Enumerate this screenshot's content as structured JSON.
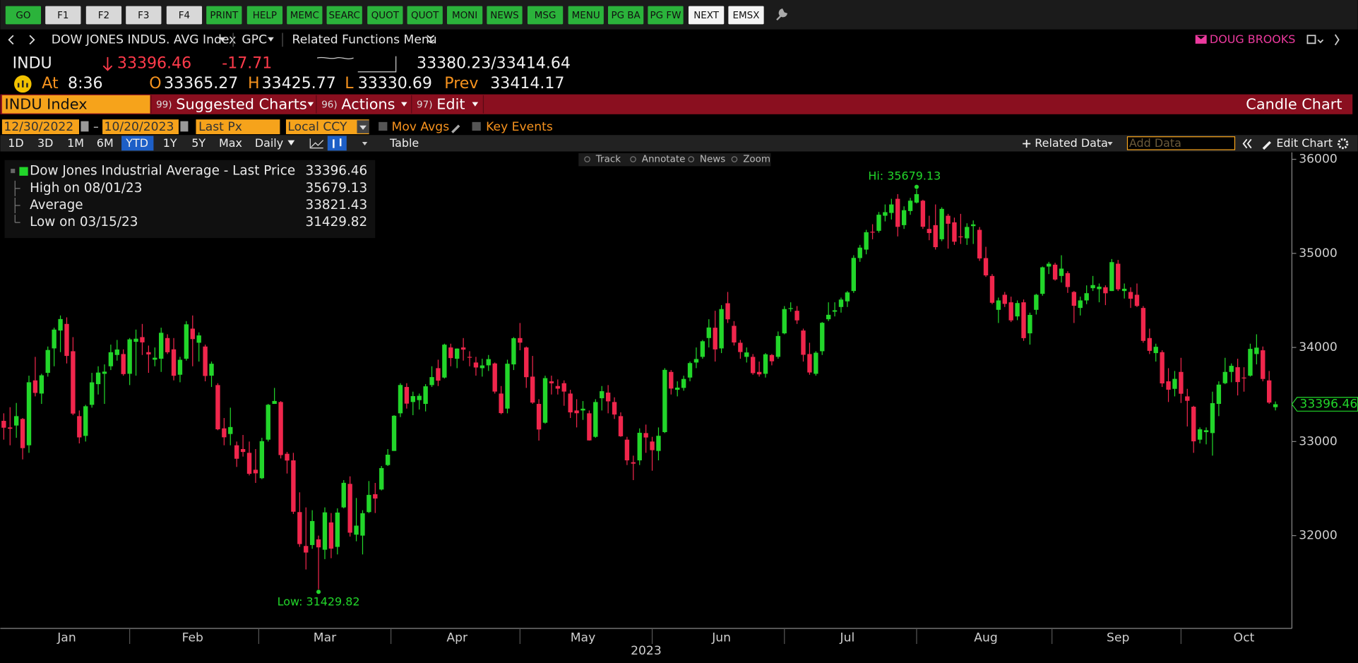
{
  "ui": {
    "toolbar": [
      "GO",
      "F1",
      "F2",
      "F3",
      "F4",
      "PRINT",
      "HELP",
      "MEMC",
      "SEARC",
      "QUOT",
      "QUOT",
      "MONI",
      "NEWS",
      "MSG",
      "MENU",
      "PG BA",
      "PG FW",
      "NEXT",
      "EMSX"
    ],
    "nav": {
      "security": "DOW JONES INDUS. AVG Index",
      "gpc": "GPC",
      "related": "Related Functions Menu",
      "user": "DOUG BROOKS"
    },
    "quote": {
      "ticker": "INDU",
      "last": "33396.46",
      "change": "-17.71",
      "bid_ask": "33380.23/33414.64",
      "at_label": "At",
      "time": "8:36",
      "open_label": "O",
      "open": "33365.27",
      "high_label": "H",
      "high": "33425.77",
      "low_label": "L",
      "low": "33330.69",
      "prev_label": "Prev",
      "prev": "33414.17"
    },
    "bar": {
      "ticker": "INDU Index",
      "menu1_num": "99)",
      "menu1": "Suggested Charts",
      "menu2_num": "96)",
      "menu2": "Actions",
      "menu3_num": "97)",
      "menu3": "Edit",
      "chart_kind": "Candle Chart"
    },
    "settings": {
      "start": "12/30/2022",
      "end": "10/20/2023",
      "price": "Last Px",
      "currency": "Local CCY",
      "mov_avgs": "Mov Avgs",
      "key_events": "Key Events"
    },
    "ranges": [
      "1D",
      "3D",
      "1M",
      "6M",
      "YTD",
      "1Y",
      "5Y",
      "Max"
    ],
    "period": "Daily",
    "table": "Table",
    "related_data": "Related Data",
    "add_data": "Add Data",
    "edit_chart": "Edit Chart",
    "chart_tools": [
      "Track",
      "Annotate",
      "News",
      "Zoom"
    ]
  },
  "chart_data": {
    "type": "candlestick",
    "legend": [
      {
        "label": "Dow Jones Industrial Average - Last Price",
        "value": "33396.46"
      },
      {
        "label": "High on 08/01/23",
        "value": "35679.13"
      },
      {
        "label": "Average",
        "value": "33821.43"
      },
      {
        "label": "Low on 03/15/23",
        "value": "31429.82"
      }
    ],
    "annotations": [
      "Hi: 35679.13",
      "Low: 31429.82"
    ],
    "last_price_label": "33396.46",
    "x_label": "2023",
    "up_color": "#22d62a",
    "down_color": "#f0264c",
    "ylim": [
      31014,
      36074
    ],
    "yticks": [
      32000,
      33000,
      34000,
      35000,
      36000
    ],
    "categories": [
      null,
      null,
      null,
      null,
      null,
      null,
      null,
      null,
      null,
      null,
      "Jan",
      null,
      null,
      null,
      null,
      null,
      null,
      null,
      null,
      null,
      null,
      null,
      null,
      null,
      null,
      null,
      null,
      null,
      null,
      null,
      "Feb",
      null,
      null,
      null,
      null,
      null,
      null,
      null,
      null,
      null,
      null,
      null,
      null,
      null,
      null,
      null,
      null,
      null,
      null,
      null,
      null,
      "Mar",
      null,
      null,
      null,
      null,
      null,
      null,
      null,
      null,
      null,
      null,
      null,
      null,
      null,
      null,
      null,
      null,
      null,
      null,
      null,
      null,
      "Apr",
      null,
      null,
      null,
      null,
      null,
      null,
      null,
      null,
      null,
      null,
      null,
      null,
      null,
      null,
      null,
      null,
      null,
      null,
      null,
      "May",
      null,
      null,
      null,
      null,
      null,
      null,
      null,
      null,
      null,
      null,
      null,
      null,
      null,
      null,
      null,
      null,
      null,
      null,
      null,
      null,
      null,
      "Jun",
      null,
      null,
      null,
      null,
      null,
      null,
      null,
      null,
      null,
      null,
      null,
      null,
      null,
      null,
      null,
      null,
      null,
      null,
      null,
      "Jul",
      null,
      null,
      null,
      null,
      null,
      null,
      null,
      null,
      null,
      null,
      null,
      null,
      null,
      null,
      null,
      null,
      null,
      null,
      null,
      null,
      null,
      "Aug",
      null,
      null,
      null,
      null,
      null,
      null,
      null,
      null,
      null,
      null,
      null,
      null,
      null,
      null,
      null,
      null,
      null,
      null,
      null,
      null,
      "Sep",
      null,
      null,
      null,
      null,
      null,
      null,
      null,
      null,
      null,
      null,
      null,
      null,
      null,
      null,
      null,
      null,
      null,
      null,
      null,
      "Oct",
      null,
      null,
      null,
      null,
      null
    ],
    "open": [
      33220,
      33150,
      33170,
      33240,
      32960,
      33650,
      33510,
      33730,
      33990,
      34180,
      34250,
      33960,
      33270,
      33060,
      33390,
      33610,
      33720,
      33800,
      33920,
      33930,
      33720,
      34060,
      34110,
      33950,
      33870,
      33880,
      34100,
      33980,
      33710,
      33880,
      34200,
      34050,
      34010,
      33700,
      33600,
      33140,
      33080,
      32960,
      32920,
      32880,
      32700,
      32610,
      33020,
      33400,
      33420,
      32870,
      32800,
      32250,
      31890,
      31900,
      31960,
      31850,
      32140,
      31880,
      32300,
      32550,
      32010,
      32000,
      32250,
      32440,
      32490,
      32750,
      32900,
      33300,
      33580,
      33420,
      33440,
      33400,
      33600,
      33780,
      33680,
      34000,
      33880,
      34000,
      33900,
      33840,
      33780,
      33810,
      33830,
      33510,
      33350,
      33820,
      34100,
      34000,
      33690,
      33400,
      33200,
      33640,
      33590,
      33620,
      33510,
      33330,
      33330,
      33300,
      33050,
      33460,
      33520,
      33420,
      33270,
      33020,
      32780,
      32800,
      33090,
      33000,
      32900,
      33100,
      33740,
      33550,
      33570,
      33680,
      33840,
      33900,
      34100,
      34210,
      33990,
      34470,
      34230,
      34050,
      33900,
      33900,
      33740,
      33720,
      33920,
      33900,
      34150,
      34410,
      34390,
      34180,
      33930,
      33720,
      33960,
      34300,
      34380,
      34430,
      34490,
      34600,
      34950,
      35040,
      35230,
      35240,
      35400,
      35430,
      35580,
      35300,
      35450,
      35540,
      35560,
      35260,
      35300,
      35150,
      35400,
      35330,
      35180,
      35160,
      35290,
      35250,
      34950,
      34760,
      34400,
      34560,
      34480,
      34330,
      34480,
      34150,
      34400,
      34570,
      34860,
      34880,
      34760,
      34790,
      34590,
      34420,
      34500,
      34630,
      34620,
      34640,
      34600,
      34890,
      34600,
      34590,
      34560,
      34420,
      34100,
      33940,
      33950,
      33640,
      33560,
      33740,
      33480,
      33370,
      33020,
      33100,
      33090,
      33400,
      33620,
      33740,
      33790,
      33680,
      33700,
      33930,
      33970,
      33650,
      33365.27
    ],
    "high": [
      33300,
      33365,
      33410,
      33250,
      33700,
      33900,
      33720,
      34010,
      34210,
      34340,
      34320,
      34110,
      33330,
      33390,
      33730,
      33800,
      33820,
      34030,
      34080,
      33980,
      34100,
      34190,
      34250,
      34020,
      34000,
      34210,
      34140,
      34100,
      33900,
      34280,
      34340,
      34160,
      34030,
      33850,
      33620,
      33250,
      33360,
      33000,
      33070,
      33000,
      32920,
      33040,
      33400,
      33570,
      33430,
      32890,
      32880,
      32460,
      32300,
      32270,
      32000,
      32300,
      32240,
      32290,
      32590,
      32630,
      32400,
      32270,
      32580,
      32560,
      32740,
      32920,
      33280,
      33620,
      33620,
      33530,
      33510,
      33610,
      33800,
      33870,
      34040,
      34040,
      33990,
      34100,
      33960,
      33900,
      33880,
      33920,
      33840,
      33590,
      33870,
      34110,
      34260,
      34010,
      33910,
      33450,
      33700,
      33700,
      33660,
      33650,
      33550,
      33450,
      33430,
      33330,
      33450,
      33590,
      33600,
      33470,
      33310,
      33050,
      32850,
      33140,
      33180,
      33050,
      33150,
      33780,
      33760,
      33640,
      33700,
      33850,
      34000,
      34080,
      34300,
      34390,
      34450,
      34590,
      34280,
      34080,
      34000,
      33930,
      33850,
      33940,
      33930,
      34170,
      34440,
      34480,
      34440,
      34200,
      34050,
      33960,
      34270,
      34480,
      34480,
      34530,
      34600,
      34980,
      35090,
      35250,
      35310,
      35440,
      35520,
      35580,
      35630,
      35500,
      35590,
      35679.13,
      35570,
      35400,
      35520,
      35490,
      35420,
      35380,
      35420,
      35320,
      35350,
      35280,
      35070,
      34780,
      34530,
      34590,
      34540,
      34500,
      34510,
      34370,
      34570,
      34860,
      34910,
      34900,
      34980,
      34810,
      34600,
      34540,
      34660,
      34760,
      34680,
      34660,
      34940,
      34930,
      34680,
      34640,
      34680,
      34440,
      34200,
      34040,
      33970,
      33780,
      33750,
      33890,
      33560,
      33380,
      33150,
      33150,
      33530,
      33640,
      33890,
      33830,
      33880,
      33790,
      34040,
      34140,
      34010,
      33750,
      33425.77
    ],
    "low": [
      33020,
      32960,
      33040,
      32810,
      32880,
      33480,
      33400,
      33690,
      33800,
      33950,
      33830,
      33280,
      32980,
      33000,
      33360,
      33500,
      33400,
      33760,
      33860,
      33700,
      33600,
      33700,
      33920,
      33730,
      33800,
      33740,
      33930,
      33650,
      33630,
      33860,
      33800,
      33850,
      33640,
      33580,
      33120,
      32960,
      32960,
      32730,
      32840,
      32640,
      32560,
      32600,
      33000,
      33400,
      32820,
      32660,
      32230,
      31880,
      31640,
      31860,
      31429.82,
      31750,
      31760,
      31800,
      32290,
      31990,
      31940,
      31800,
      32240,
      32240,
      32480,
      32740,
      32900,
      33260,
      33350,
      33280,
      33340,
      33320,
      33580,
      33590,
      33670,
      33800,
      33780,
      33860,
      33800,
      33700,
      33690,
      33750,
      33510,
      33290,
      33300,
      33760,
      33970,
      33570,
      33400,
      33010,
      33190,
      33500,
      33500,
      33380,
      33250,
      33150,
      33230,
      33010,
      33040,
      33330,
      33300,
      33240,
      33050,
      32750,
      32590,
      32750,
      32880,
      32690,
      32800,
      33090,
      33500,
      33480,
      33540,
      33640,
      33780,
      33880,
      34000,
      33850,
      33940,
      34260,
      34020,
      33880,
      33840,
      33710,
      33690,
      33680,
      33810,
      33880,
      34140,
      34380,
      34250,
      33850,
      33710,
      33700,
      33920,
      34280,
      34330,
      34370,
      34430,
      34580,
      34910,
      34990,
      35150,
      35220,
      35340,
      35360,
      35180,
      35260,
      35410,
      35530,
      35260,
      35140,
      35040,
      35130,
      35050,
      35090,
      35100,
      35090,
      35100,
      34920,
      34750,
      34460,
      34260,
      34430,
      34270,
      34290,
      34070,
      34030,
      34350,
      34550,
      34780,
      34710,
      34690,
      34580,
      34260,
      34340,
      34460,
      34600,
      34480,
      34450,
      34600,
      34600,
      34520,
      34420,
      34430,
      34050,
      33930,
      33850,
      33580,
      33420,
      33480,
      33410,
      33160,
      32880,
      32980,
      32970,
      32850,
      33270,
      33610,
      33630,
      33490,
      33530,
      33690,
      33820,
      33640,
      33400,
      33330.69
    ],
    "close": [
      33147,
      33136,
      33270,
      32930,
      33630,
      33517,
      33704,
      33973,
      34190,
      34302,
      33910,
      33297,
      33044,
      33375,
      33629,
      33733,
      33743,
      33949,
      33978,
      33717,
      34086,
      34093,
      34054,
      33926,
      33891,
      34156,
      33949,
      33699,
      33869,
      34246,
      34089,
      34128,
      33697,
      33827,
      33130,
      33045,
      33154,
      32817,
      32889,
      32657,
      32662,
      33004,
      33391,
      33431,
      32856,
      32798,
      32254,
      31910,
      31820,
      32155,
      31875,
      32247,
      31862,
      32245,
      32561,
      32031,
      32106,
      32238,
      32433,
      32394,
      32718,
      32860,
      33274,
      33601,
      33403,
      33483,
      33486,
      33587,
      33685,
      33647,
      34030,
      33887,
      33988,
      33977,
      33897,
      33787,
      33809,
      33876,
      33531,
      33302,
      33827,
      34098,
      34051,
      33684,
      33414,
      33128,
      33674,
      33619,
      33562,
      33531,
      33310,
      33301,
      33349,
      33012,
      33420,
      33535,
      33427,
      33287,
      33056,
      32800,
      32765,
      33093,
      33043,
      32908,
      33061,
      33762,
      33563,
      33573,
      33665,
      33834,
      33877,
      34066,
      34212,
      33979,
      34408,
      34299,
      34053,
      33951,
      33947,
      33727,
      33714,
      33927,
      33853,
      34122,
      34408,
      34418,
      34288,
      33922,
      33734,
      33944,
      34262,
      34347,
      34395,
      34509,
      34585,
      34952,
      35061,
      35225,
      35228,
      35411,
      35438,
      35520,
      35282,
      35459,
      35560,
      35630,
      35283,
      35216,
      35066,
      35473,
      35315,
      35124,
      35176,
      35281,
      35308,
      34946,
      34766,
      34475,
      34500,
      34463,
      34288,
      34472,
      34099,
      34346,
      34560,
      34852,
      34890,
      34722,
      34838,
      34642,
      34443,
      34500,
      34577,
      34663,
      34646,
      34576,
      34907,
      34618,
      34624,
      34518,
      34441,
      34070,
      33964,
      34007,
      33618,
      33551,
      33666,
      33508,
      33433,
      33002,
      33130,
      33120,
      33408,
      33605,
      33740,
      33805,
      33632,
      33671,
      33985,
      33998,
      33665,
      33414,
      33396.46
    ]
  }
}
